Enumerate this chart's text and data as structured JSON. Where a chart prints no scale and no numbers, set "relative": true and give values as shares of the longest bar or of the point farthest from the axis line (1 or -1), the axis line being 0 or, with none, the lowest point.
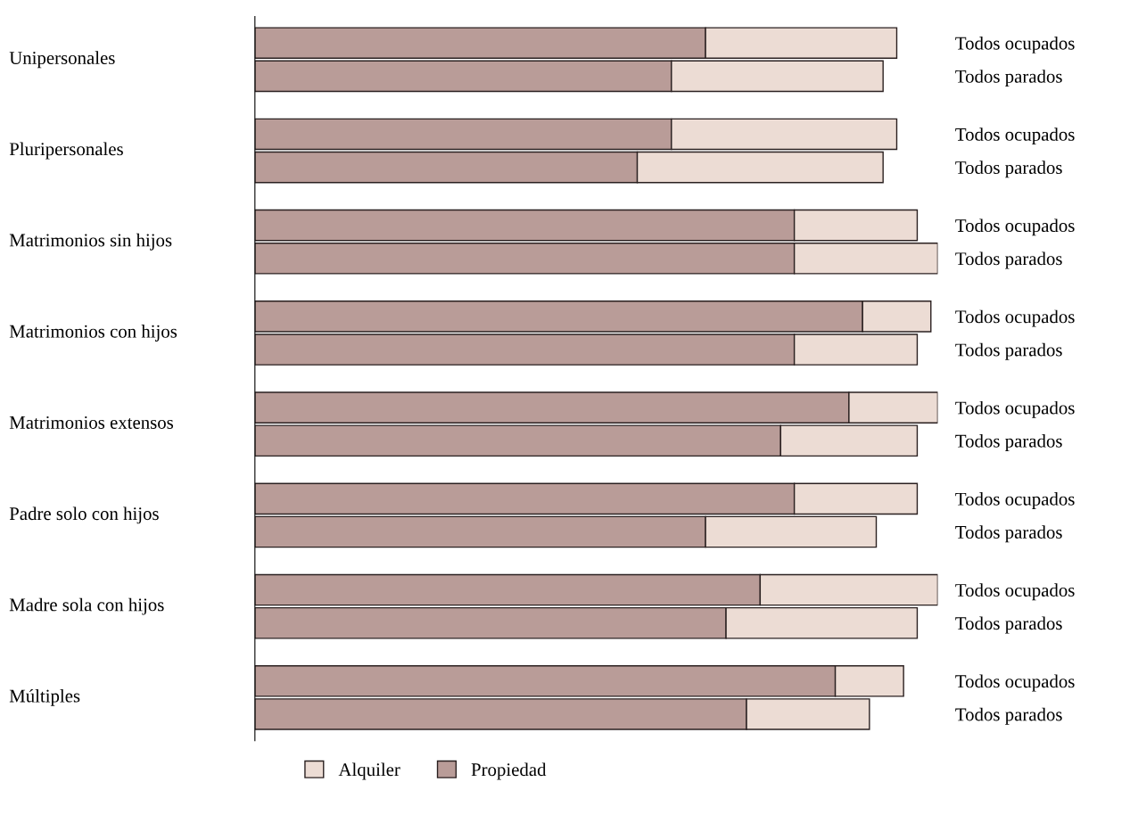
{
  "chart_data": {
    "type": "bar",
    "orientation": "horizontal",
    "stacked": true,
    "relative": true,
    "categories": [
      "Todos ocupados",
      "Todos parados",
      "Todos ocupados",
      "Todos parados",
      "Todos ocupados",
      "Todos parados",
      "Todos ocupados",
      "Todos parados",
      "Todos ocupados",
      "Todos parados",
      "Todos ocupados",
      "Todos parados",
      "Todos ocupados",
      "Todos parados",
      "Todos ocupados",
      "Todos parados"
    ],
    "series": [
      {
        "name": "Propiedad",
        "color": "#b99c98",
        "values": [
          0.66,
          0.61,
          0.61,
          0.56,
          0.79,
          0.79,
          0.89,
          0.79,
          0.87,
          0.77,
          0.79,
          0.66,
          0.74,
          0.69,
          0.85,
          0.72
        ]
      },
      {
        "name": "Alquiler",
        "color": "#ecdcd4",
        "values": [
          0.28,
          0.31,
          0.33,
          0.36,
          0.18,
          0.21,
          0.1,
          0.18,
          0.13,
          0.2,
          0.18,
          0.25,
          0.26,
          0.28,
          0.1,
          0.18
        ]
      }
    ],
    "annotations": [
      "Unipersonales",
      "Pluripersonales",
      "Matrimonios sin hijos",
      "Matrimonios con hijos",
      "Matrimonios extensos",
      "Padre solo con hijos",
      "Madre sola con hijos",
      "Múltiples"
    ],
    "legend": "bottom"
  }
}
